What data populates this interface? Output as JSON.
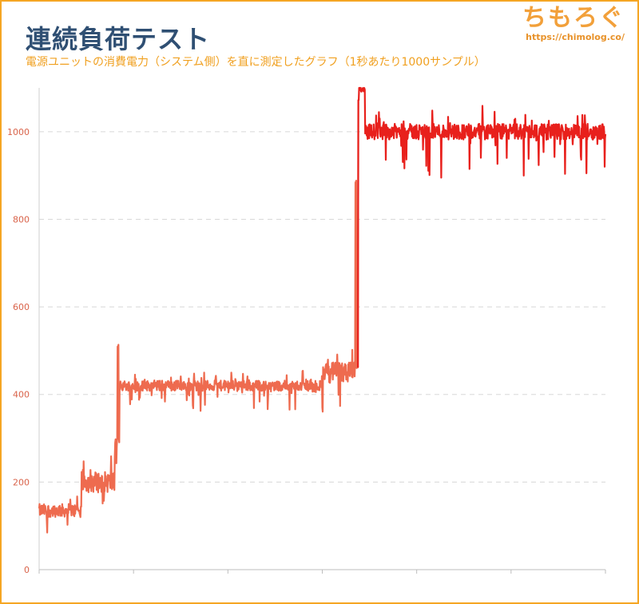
{
  "header": {
    "title": "連続負荷テスト",
    "subtitle": "電源ユニットの消費電力（システム側）を直に測定したグラフ（1秒あたり1000サンプル）"
  },
  "logo": {
    "text": "ちもろぐ",
    "url": "https://chimolog.co/"
  },
  "colors": {
    "line_low": "#ee6b4f",
    "line_high": "#e8201c",
    "grid": "#d8d8d8",
    "frame": "#f5a623"
  },
  "chart_data": {
    "type": "line",
    "title": "連続負荷テスト",
    "xlabel": "",
    "ylabel": "",
    "ylim": [
      0,
      1100
    ],
    "xlim": [
      0,
      600
    ],
    "yticks": [
      0,
      200,
      400,
      600,
      800,
      1000
    ],
    "yticks_labels": [
      "0",
      "200",
      "400",
      "600",
      "800",
      "1000"
    ],
    "x_tick_count": 7,
    "grid": "horizontal dashed",
    "legend": "none",
    "series": [
      {
        "segments": [
          {
            "x": [
              0,
              45
            ],
            "level": 135,
            "noise": 25
          },
          {
            "x": [
              45,
              80
            ],
            "level": 200,
            "noise": 40
          },
          {
            "x": [
              80,
              85
            ],
            "level": 290,
            "noise": 20
          },
          {
            "x": [
              83,
              84
            ],
            "peak": 520
          },
          {
            "x": [
              85,
              300
            ],
            "level": 420,
            "noise": 20
          },
          {
            "x": [
              300,
              335
            ],
            "level": 450,
            "noise": 40
          },
          {
            "x": [
              335,
              338
            ],
            "level": 470,
            "noise": 20
          },
          {
            "x": [
              335,
              336
            ],
            "peak": 890
          },
          {
            "x": [
              338,
              345
            ],
            "level": 1070,
            "noise": 30
          },
          {
            "x": [
              339,
              345
            ],
            "peak": 1105
          },
          {
            "x": [
              345,
              600
            ],
            "level": 1000,
            "noise": 30
          }
        ],
        "min_dips": [
          {
            "x": 426,
            "y": 895
          },
          {
            "x": 580,
            "y": 905
          },
          {
            "x": 599,
            "y": 920
          }
        ]
      }
    ]
  }
}
